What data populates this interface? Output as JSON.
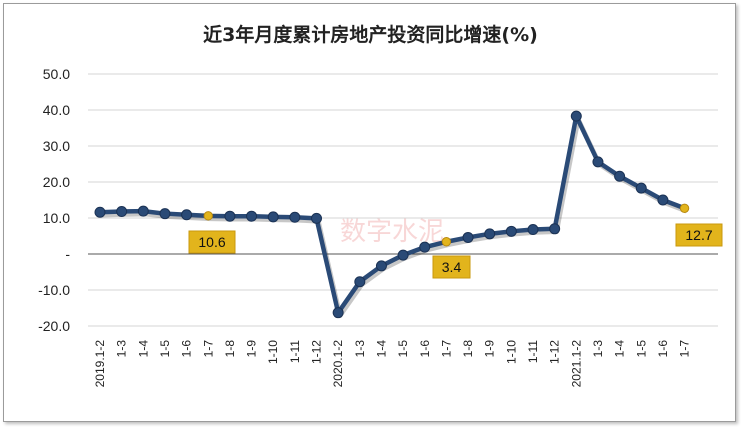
{
  "chart_data": {
    "type": "line",
    "title": "近3年月度累计房地产投资同比增速(%)",
    "xlabel": "",
    "ylabel": "",
    "ylim": [
      -20,
      50
    ],
    "y_ticks": [
      "50.0",
      "40.0",
      "30.0",
      "20.0",
      "10.0",
      "-",
      "-10.0",
      "-20.0"
    ],
    "grid": true,
    "categories": [
      "2019.1-2",
      "1-3",
      "1-4",
      "1-5",
      "1-6",
      "1-7",
      "1-8",
      "1-9",
      "1-10",
      "1-11",
      "1-12",
      "2020.1-2",
      "1-3",
      "1-4",
      "1-5",
      "1-6",
      "1-7",
      "1-8",
      "1-9",
      "1-10",
      "1-11",
      "1-12",
      "2021.1-2",
      "1-3",
      "1-4",
      "1-5",
      "1-6",
      "1-7"
    ],
    "series": [
      {
        "values": [
          11.6,
          11.8,
          11.9,
          11.2,
          10.9,
          10.6,
          10.5,
          10.5,
          10.3,
          10.2,
          9.9,
          -16.3,
          -7.7,
          -3.3,
          -0.3,
          1.9,
          3.4,
          4.6,
          5.6,
          6.3,
          6.8,
          7.0,
          38.3,
          25.6,
          21.6,
          18.3,
          15.0,
          12.7
        ],
        "color": "#2a4a76"
      }
    ],
    "highlight_color": "#e2b41c",
    "annotations": [
      {
        "index": 5,
        "text": "10.6"
      },
      {
        "index": 16,
        "text": "3.4"
      },
      {
        "index": 27,
        "text": "12.7"
      }
    ],
    "watermark": "数字水泥"
  }
}
